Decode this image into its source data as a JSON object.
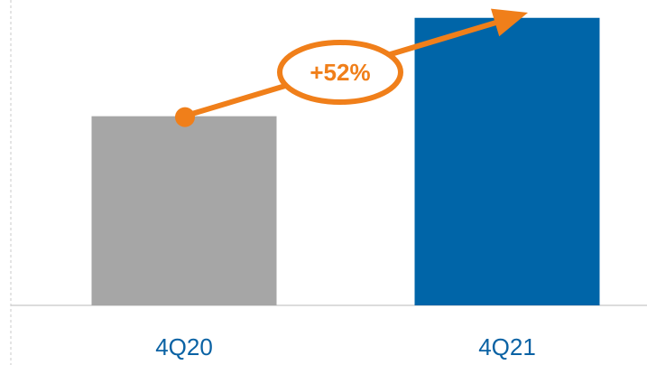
{
  "chart_data": {
    "type": "bar",
    "categories": [
      "4Q20",
      "4Q21"
    ],
    "values": [
      100,
      152
    ],
    "colors": [
      "#a6a6a6",
      "#0065a8"
    ],
    "ylim": [
      0,
      160
    ],
    "annotation": "+52%"
  }
}
